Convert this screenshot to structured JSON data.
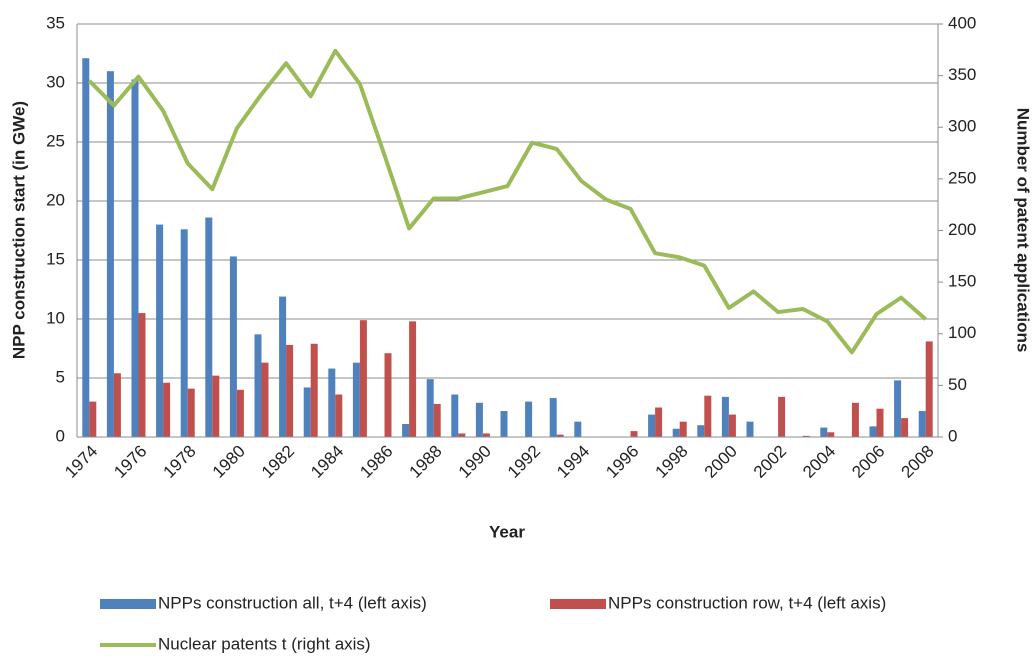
{
  "chart_data": {
    "type": "bar_line",
    "xlabel": "Year",
    "ylabel": "NPP construction start (in GWe)",
    "y2label": "Number of patent applications",
    "categories": [
      "1974",
      null,
      "1976",
      null,
      "1978",
      null,
      "1980",
      null,
      "1982",
      null,
      "1984",
      null,
      "1986",
      null,
      "1988",
      null,
      "1990",
      null,
      "1992",
      null,
      "1994",
      null,
      "1996",
      null,
      "1998",
      null,
      "2000",
      null,
      "2002",
      null,
      "2004",
      null,
      "2006",
      null,
      "2008"
    ],
    "series": [
      {
        "name": "NPPs construction all, t+4 (left axis)",
        "type": "bar",
        "color": "#4f81bd",
        "values": [
          32.1,
          31.0,
          30.3,
          18.0,
          17.6,
          18.6,
          15.3,
          8.7,
          11.9,
          4.2,
          5.8,
          6.3,
          0,
          1.1,
          4.9,
          3.6,
          2.9,
          2.2,
          3.0,
          3.3,
          1.3,
          0,
          0,
          1.9,
          0.7,
          1.0,
          3.4,
          1.3,
          0,
          0,
          0.8,
          0,
          0.9,
          4.8,
          2.2
        ]
      },
      {
        "name": "NPPs construction row, t+4 (left axis)",
        "type": "bar",
        "color": "#c0504d",
        "values": [
          3.0,
          5.4,
          10.5,
          4.6,
          4.1,
          5.2,
          4.0,
          6.3,
          7.8,
          7.9,
          3.6,
          9.9,
          7.1,
          9.8,
          2.8,
          0.3,
          0.3,
          0,
          0,
          0.2,
          0,
          0,
          0.5,
          2.5,
          1.3,
          3.5,
          1.9,
          0,
          3.4,
          0.1,
          0.4,
          2.9,
          2.4,
          1.6,
          8.1
        ]
      },
      {
        "name": "Nuclear patents t (right axis)",
        "type": "line",
        "axis": "y2",
        "color": "#9bbb59",
        "values": [
          345,
          321,
          349,
          316,
          265,
          240,
          299,
          332,
          362,
          330,
          374,
          342,
          273,
          202,
          231,
          231,
          237,
          243,
          285,
          279,
          248,
          230,
          221,
          178,
          174,
          166,
          125,
          141,
          121,
          124,
          112,
          82,
          119,
          135,
          114
        ]
      }
    ],
    "ylim": [
      0,
      35
    ],
    "yticks": [
      0,
      5,
      10,
      15,
      20,
      25,
      30,
      35
    ],
    "y2lim": [
      0,
      400
    ],
    "y2ticks": [
      0,
      50,
      100,
      150,
      200,
      250,
      300,
      350,
      400
    ],
    "grid": true,
    "legend": "bottom"
  }
}
